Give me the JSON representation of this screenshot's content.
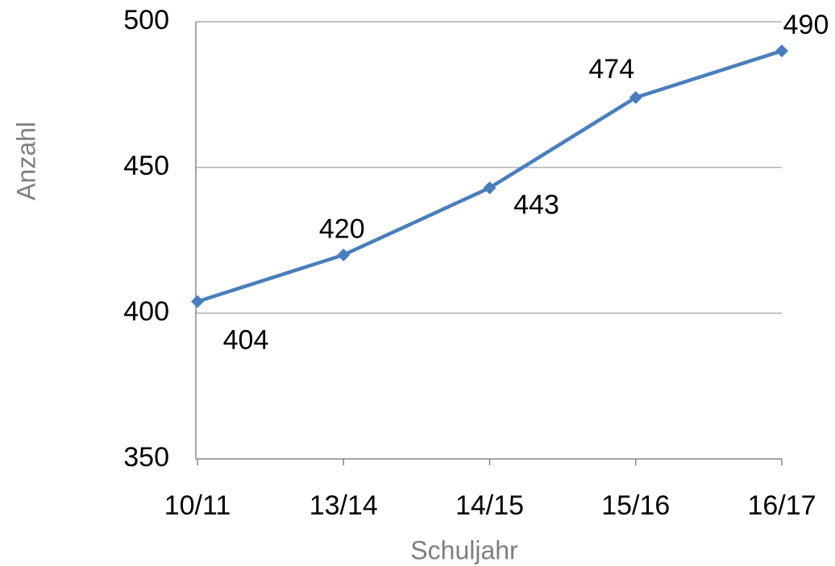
{
  "chart_data": {
    "type": "line",
    "categories": [
      "10/11",
      "13/14",
      "14/15",
      "15/16",
      "16/17"
    ],
    "series": [
      {
        "name": "Anzahl",
        "color": "#4a7ebb",
        "values": [
          404,
          420,
          443,
          474,
          490
        ]
      }
    ],
    "y_label": "Anzahl",
    "x_label": "Schuljahr",
    "ylim": [
      350,
      500
    ],
    "yticks": [
      350,
      400,
      450,
      500
    ],
    "grid": true
  }
}
